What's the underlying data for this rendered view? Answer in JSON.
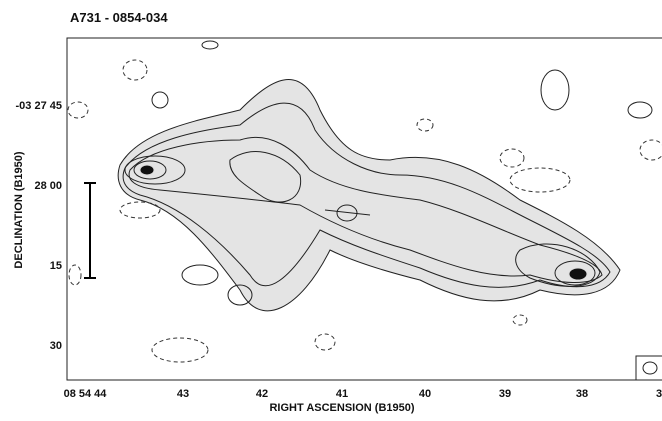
{
  "figure": {
    "title": "A731 - 0854-034",
    "x_label": "RIGHT ASCENSION (B1950)",
    "y_label": "DECLINATION (B1950)",
    "x_tick_labels": [
      "08 54 44",
      "43",
      "42",
      "41",
      "40",
      "39",
      "38",
      "3"
    ],
    "y_tick_labels": [
      "-03 27 45",
      "28 00",
      "15",
      "30"
    ]
  }
}
